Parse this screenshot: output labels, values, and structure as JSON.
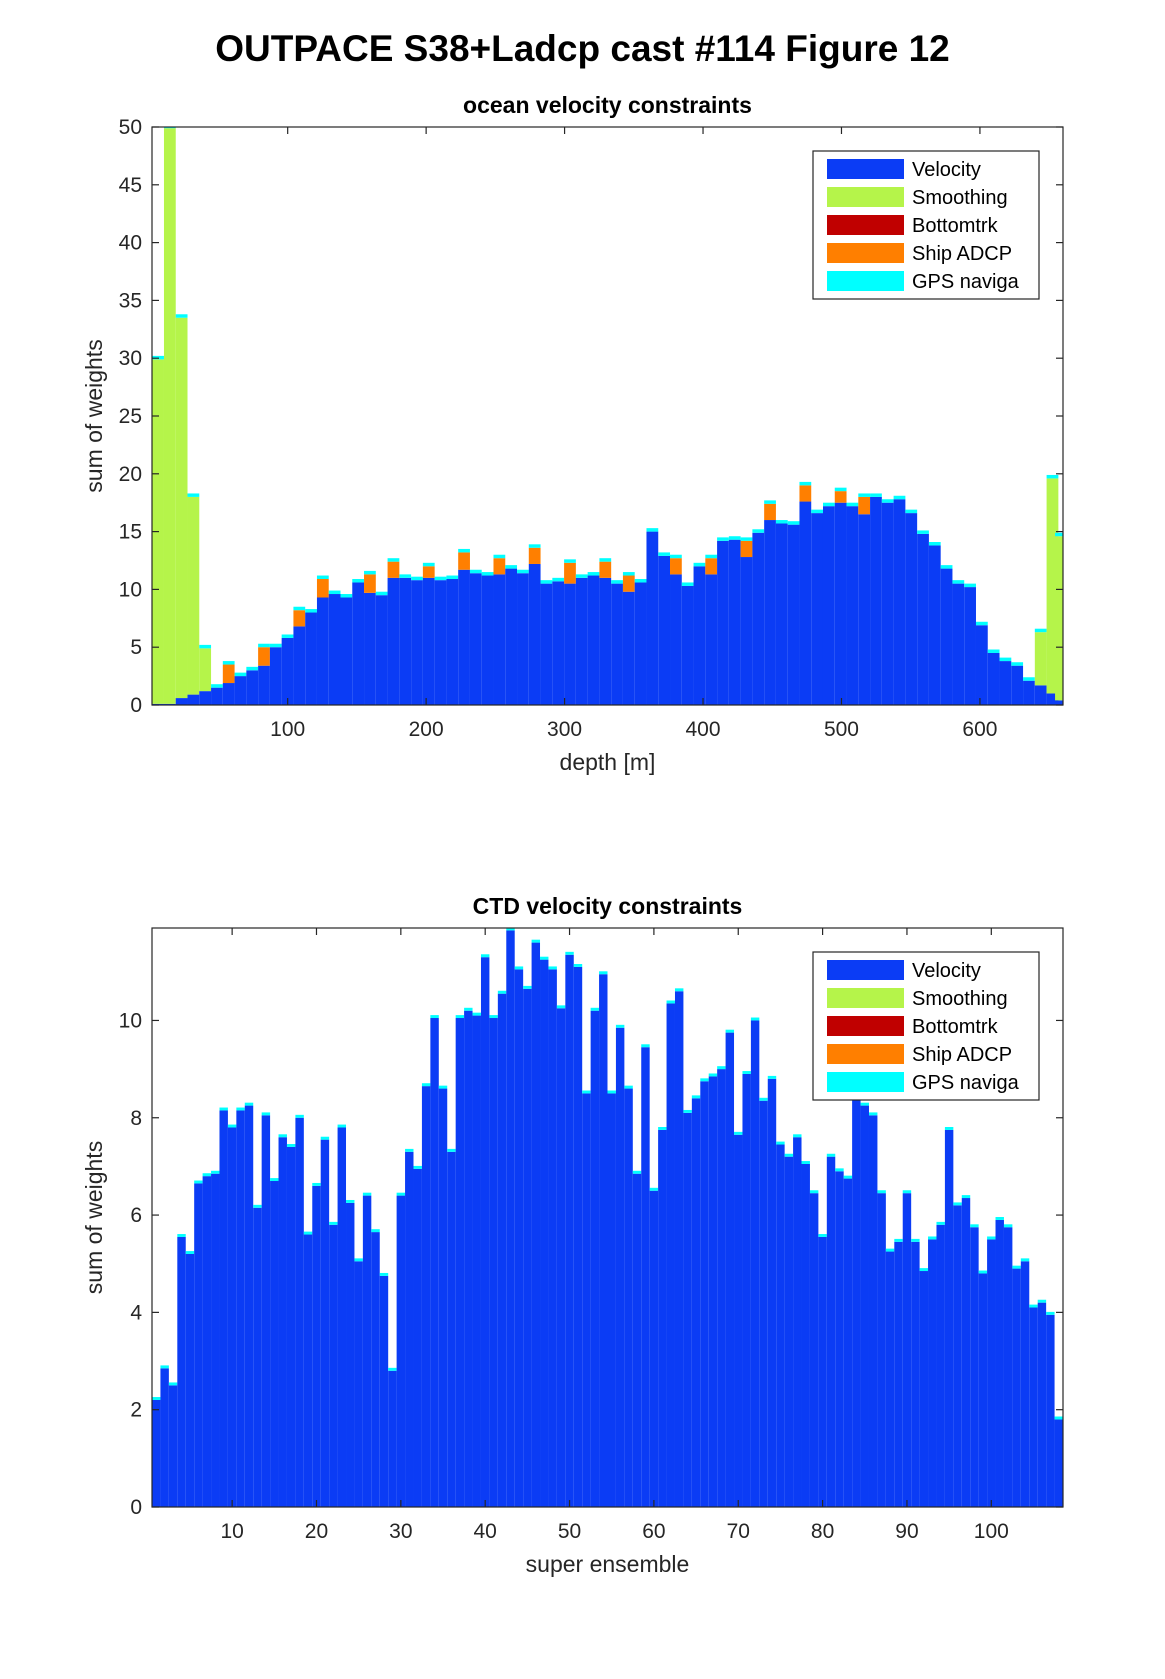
{
  "figure": {
    "title": "OUTPACE S38+Ladcp cast #114  Figure 12"
  },
  "colors": {
    "velocity": "#0b3cf5",
    "smoothing": "#b5f44a",
    "bottomtrk": "#c00000",
    "ship_adcp": "#ff7f00",
    "gps": "#00ffff"
  },
  "legend": {
    "entries": [
      "Velocity",
      "Smoothing",
      "Bottomtrk",
      "Ship ADCP",
      "GPS naviga"
    ],
    "placement": "top-right"
  },
  "chart_data": [
    {
      "type": "bar",
      "stacked": true,
      "title": "ocean velocity constraints",
      "xlabel": "depth [m]",
      "ylabel": "sum of weights",
      "xlim": [
        2,
        660
      ],
      "ylim": [
        0,
        50
      ],
      "xticks": [
        100,
        200,
        300,
        400,
        500,
        600
      ],
      "yticks": [
        0,
        5,
        10,
        15,
        20,
        25,
        30,
        35,
        40,
        45,
        50
      ],
      "bin_width": 8.5,
      "depth": [
        6.4,
        14.9,
        23.4,
        31.9,
        40.4,
        48.9,
        57.4,
        65.9,
        74.4,
        82.9,
        91.4,
        99.9,
        108.4,
        116.9,
        125.4,
        133.9,
        142.4,
        150.9,
        159.4,
        167.9,
        176.4,
        184.9,
        193.4,
        201.9,
        210.4,
        218.9,
        227.4,
        235.9,
        244.4,
        252.9,
        261.4,
        269.9,
        278.4,
        286.9,
        295.4,
        303.9,
        312.4,
        320.9,
        329.4,
        337.9,
        346.4,
        354.9,
        363.4,
        371.9,
        380.4,
        388.9,
        397.4,
        405.9,
        414.4,
        422.9,
        431.4,
        439.9,
        448.4,
        456.9,
        465.4,
        473.9,
        482.4,
        490.9,
        499.4,
        507.9,
        516.4,
        524.9,
        533.4,
        541.9,
        550.4,
        558.9,
        567.4,
        575.9,
        584.4,
        592.9,
        601.4,
        609.9,
        618.4,
        626.9,
        635.4,
        643.9,
        652.4,
        658.5
      ],
      "series": [
        {
          "name": "Velocity",
          "values": [
            0.1,
            0.1,
            0.6,
            0.9,
            1.2,
            1.5,
            1.9,
            2.5,
            3.0,
            3.4,
            5.0,
            5.8,
            6.8,
            8.0,
            9.3,
            9.6,
            9.3,
            10.6,
            9.7,
            9.5,
            11.0,
            11.0,
            10.8,
            11.0,
            10.8,
            10.9,
            11.7,
            11.4,
            11.2,
            11.3,
            11.8,
            11.4,
            12.2,
            10.5,
            10.7,
            10.5,
            11.0,
            11.2,
            11.0,
            10.5,
            9.8,
            10.6,
            15.0,
            12.9,
            11.3,
            10.3,
            12.0,
            11.3,
            14.2,
            14.3,
            12.8,
            14.9,
            16.0,
            15.7,
            15.6,
            17.6,
            16.6,
            17.2,
            17.5,
            17.2,
            16.5,
            18.0,
            17.5,
            17.8,
            16.6,
            14.8,
            13.8,
            11.8,
            10.5,
            10.2,
            6.9,
            4.5,
            3.8,
            3.4,
            2.1,
            1.7,
            1.0,
            0.4
          ]
        },
        {
          "name": "Smoothing",
          "values": [
            29.8,
            49.8,
            32.9,
            17.1,
            3.7,
            0.0,
            0.0,
            0.0,
            0.0,
            0.0,
            0.0,
            0.0,
            0.0,
            0.0,
            0.0,
            0.0,
            0.0,
            0.0,
            0.0,
            0.0,
            0.0,
            0.0,
            0.0,
            0.0,
            0.0,
            0.0,
            0.0,
            0.0,
            0.0,
            0.0,
            0.0,
            0.0,
            0.0,
            0.0,
            0.0,
            0.0,
            0.0,
            0.0,
            0.0,
            0.0,
            0.0,
            0.0,
            0.0,
            0.0,
            0.0,
            0.0,
            0.0,
            0.0,
            0.0,
            0.0,
            0.0,
            0.0,
            0.0,
            0.0,
            0.0,
            0.0,
            0.0,
            0.0,
            0.0,
            0.0,
            0.0,
            0.0,
            0.0,
            0.0,
            0.0,
            0.0,
            0.0,
            0.0,
            0.0,
            0.0,
            0.0,
            0.0,
            0.0,
            0.0,
            0.0,
            4.6,
            18.6,
            14.2
          ]
        },
        {
          "name": "Bottomtrk",
          "values": [
            0,
            0,
            0,
            0,
            0,
            0,
            0,
            0,
            0,
            0,
            0,
            0,
            0,
            0,
            0,
            0,
            0,
            0,
            0,
            0,
            0,
            0,
            0,
            0,
            0,
            0,
            0,
            0,
            0,
            0,
            0,
            0,
            0,
            0,
            0,
            0,
            0,
            0,
            0,
            0,
            0,
            0,
            0,
            0,
            0,
            0,
            0,
            0,
            0,
            0,
            0,
            0,
            0,
            0,
            0,
            0,
            0,
            0,
            0,
            0,
            0,
            0,
            0,
            0,
            0,
            0,
            0,
            0,
            0,
            0,
            0,
            0,
            0,
            0,
            0,
            0,
            0,
            0
          ]
        },
        {
          "name": "Ship ADCP",
          "values": [
            0,
            0,
            0,
            0,
            0,
            0,
            1.6,
            0,
            0,
            1.6,
            0,
            0,
            1.4,
            0,
            1.6,
            0,
            0,
            0,
            1.6,
            0,
            1.4,
            0,
            0,
            1.0,
            0,
            0,
            1.5,
            0,
            0,
            1.4,
            0,
            0,
            1.4,
            0,
            0,
            1.8,
            0,
            0,
            1.4,
            0,
            1.4,
            0,
            0,
            0,
            1.4,
            0,
            0,
            1.4,
            0,
            0,
            1.4,
            0,
            1.4,
            0,
            0,
            1.4,
            0,
            0,
            1.0,
            0,
            1.5,
            0,
            0,
            0,
            0,
            0,
            0,
            0,
            0,
            0,
            0,
            0,
            0,
            0,
            0,
            0,
            0,
            0
          ]
        },
        {
          "name": "GPS naviga",
          "values": [
            0.3,
            0.3,
            0.3,
            0.3,
            0.3,
            0.3,
            0.3,
            0.3,
            0.3,
            0.3,
            0.3,
            0.3,
            0.3,
            0.3,
            0.3,
            0.3,
            0.3,
            0.3,
            0.3,
            0.3,
            0.3,
            0.3,
            0.3,
            0.3,
            0.3,
            0.3,
            0.3,
            0.3,
            0.3,
            0.3,
            0.3,
            0.3,
            0.3,
            0.3,
            0.3,
            0.3,
            0.3,
            0.3,
            0.3,
            0.3,
            0.3,
            0.3,
            0.3,
            0.3,
            0.3,
            0.3,
            0.3,
            0.3,
            0.3,
            0.3,
            0.3,
            0.3,
            0.3,
            0.3,
            0.3,
            0.3,
            0.3,
            0.3,
            0.3,
            0.3,
            0.3,
            0.3,
            0.3,
            0.3,
            0.3,
            0.3,
            0.3,
            0.3,
            0.3,
            0.3,
            0.3,
            0.3,
            0.3,
            0.3,
            0.3,
            0.3,
            0.3,
            0.3
          ]
        }
      ]
    },
    {
      "type": "bar",
      "stacked": true,
      "title": "CTD velocity constraints",
      "xlabel": "super ensemble",
      "ylabel": "sum of weights",
      "xlim": [
        0.5,
        108.5
      ],
      "ylim": [
        0,
        11.9
      ],
      "xticks": [
        10,
        20,
        30,
        40,
        50,
        60,
        70,
        80,
        90,
        100
      ],
      "yticks": [
        0,
        2,
        4,
        6,
        8,
        10
      ],
      "x": [
        1,
        2,
        3,
        4,
        5,
        6,
        7,
        8,
        9,
        10,
        11,
        12,
        13,
        14,
        15,
        16,
        17,
        18,
        19,
        20,
        21,
        22,
        23,
        24,
        25,
        26,
        27,
        28,
        29,
        30,
        31,
        32,
        33,
        34,
        35,
        36,
        37,
        38,
        39,
        40,
        41,
        42,
        43,
        44,
        45,
        46,
        47,
        48,
        49,
        50,
        51,
        52,
        53,
        54,
        55,
        56,
        57,
        58,
        59,
        60,
        61,
        62,
        63,
        64,
        65,
        66,
        67,
        68,
        69,
        70,
        71,
        72,
        73,
        74,
        75,
        76,
        77,
        78,
        79,
        80,
        81,
        82,
        83,
        84,
        85,
        86,
        87,
        88,
        89,
        90,
        91,
        92,
        93,
        94,
        95,
        96,
        97,
        98,
        99,
        100,
        101,
        102,
        103,
        104,
        105,
        106,
        107,
        108
      ],
      "series": [
        {
          "name": "Velocity",
          "values": [
            2.2,
            2.85,
            2.5,
            5.55,
            5.2,
            6.65,
            6.8,
            6.85,
            8.15,
            7.8,
            8.15,
            8.25,
            6.15,
            8.05,
            6.7,
            7.6,
            7.4,
            8.0,
            5.6,
            6.6,
            7.55,
            5.8,
            7.8,
            6.25,
            5.05,
            6.4,
            5.65,
            4.75,
            2.8,
            6.4,
            7.3,
            6.95,
            8.65,
            10.05,
            8.6,
            7.3,
            10.05,
            10.2,
            10.1,
            11.3,
            10.05,
            10.55,
            11.85,
            11.05,
            10.65,
            11.6,
            11.25,
            11.05,
            10.25,
            11.35,
            11.1,
            8.5,
            10.2,
            10.95,
            8.5,
            9.85,
            8.6,
            6.85,
            9.45,
            6.5,
            7.75,
            10.35,
            10.6,
            8.1,
            8.4,
            8.75,
            8.85,
            9.0,
            9.75,
            7.65,
            8.9,
            10.0,
            8.35,
            8.8,
            7.45,
            7.2,
            7.6,
            7.05,
            6.45,
            5.55,
            7.2,
            6.9,
            6.75,
            8.45,
            8.25,
            8.05,
            6.45,
            5.25,
            5.45,
            6.45,
            5.45,
            4.85,
            5.5,
            5.8,
            7.75,
            6.2,
            6.35,
            5.75,
            4.8,
            5.5,
            5.9,
            5.75,
            4.9,
            5.05,
            4.1,
            4.2,
            3.95,
            1.8
          ]
        },
        {
          "name": "Smoothing",
          "values": [
            0,
            0,
            0,
            0,
            0,
            0,
            0,
            0,
            0,
            0,
            0,
            0,
            0,
            0,
            0,
            0,
            0,
            0,
            0,
            0,
            0,
            0,
            0,
            0,
            0,
            0,
            0,
            0,
            0,
            0,
            0,
            0,
            0,
            0,
            0,
            0,
            0,
            0,
            0,
            0,
            0,
            0,
            0,
            0,
            0,
            0,
            0,
            0,
            0,
            0,
            0,
            0,
            0,
            0,
            0,
            0,
            0,
            0,
            0,
            0,
            0,
            0,
            0,
            0,
            0,
            0,
            0,
            0,
            0,
            0,
            0,
            0,
            0,
            0,
            0,
            0,
            0,
            0,
            0,
            0,
            0,
            0,
            0,
            0,
            0,
            0,
            0,
            0,
            0,
            0,
            0,
            0,
            0,
            0,
            0,
            0,
            0,
            0,
            0,
            0,
            0,
            0,
            0,
            0,
            0,
            0,
            0,
            0
          ]
        },
        {
          "name": "Bottomtrk",
          "values": [
            0,
            0,
            0,
            0,
            0,
            0,
            0,
            0,
            0,
            0,
            0,
            0,
            0,
            0,
            0,
            0,
            0,
            0,
            0,
            0,
            0,
            0,
            0,
            0,
            0,
            0,
            0,
            0,
            0,
            0,
            0,
            0,
            0,
            0,
            0,
            0,
            0,
            0,
            0,
            0,
            0,
            0,
            0,
            0,
            0,
            0,
            0,
            0,
            0,
            0,
            0,
            0,
            0,
            0,
            0,
            0,
            0,
            0,
            0,
            0,
            0,
            0,
            0,
            0,
            0,
            0,
            0,
            0,
            0,
            0,
            0,
            0,
            0,
            0,
            0,
            0,
            0,
            0,
            0,
            0,
            0,
            0,
            0,
            0,
            0,
            0,
            0,
            0,
            0,
            0,
            0,
            0,
            0,
            0,
            0,
            0,
            0,
            0,
            0,
            0,
            0,
            0,
            0,
            0,
            0,
            0,
            0,
            0
          ]
        },
        {
          "name": "Ship ADCP",
          "values": [
            0,
            0,
            0,
            0,
            0,
            0,
            0,
            0,
            0,
            0,
            0,
            0,
            0,
            0,
            0,
            0,
            0,
            0,
            0,
            0,
            0,
            0,
            0,
            0,
            0,
            0,
            0,
            0,
            0,
            0,
            0,
            0,
            0,
            0,
            0,
            0,
            0,
            0,
            0,
            0,
            0,
            0,
            0,
            0,
            0,
            0,
            0,
            0,
            0,
            0,
            0,
            0,
            0,
            0,
            0,
            0,
            0,
            0,
            0,
            0,
            0,
            0,
            0,
            0,
            0,
            0,
            0,
            0,
            0,
            0,
            0,
            0,
            0,
            0,
            0,
            0,
            0,
            0,
            0,
            0,
            0,
            0,
            0,
            0,
            0,
            0,
            0,
            0,
            0,
            0,
            0,
            0,
            0,
            0,
            0,
            0,
            0,
            0,
            0,
            0,
            0,
            0,
            0,
            0,
            0,
            0,
            0,
            0
          ]
        },
        {
          "name": "GPS naviga",
          "values": [
            0.06,
            0.06,
            0.06,
            0.06,
            0.06,
            0.06,
            0.06,
            0.06,
            0.06,
            0.06,
            0.06,
            0.06,
            0.06,
            0.06,
            0.06,
            0.06,
            0.06,
            0.06,
            0.06,
            0.06,
            0.06,
            0.06,
            0.06,
            0.06,
            0.06,
            0.06,
            0.06,
            0.06,
            0.06,
            0.06,
            0.06,
            0.06,
            0.06,
            0.06,
            0.06,
            0.06,
            0.06,
            0.06,
            0.06,
            0.06,
            0.06,
            0.06,
            0.06,
            0.06,
            0.06,
            0.06,
            0.06,
            0.06,
            0.06,
            0.06,
            0.06,
            0.06,
            0.06,
            0.06,
            0.06,
            0.06,
            0.06,
            0.06,
            0.06,
            0.06,
            0.06,
            0.06,
            0.06,
            0.06,
            0.06,
            0.06,
            0.06,
            0.06,
            0.06,
            0.06,
            0.06,
            0.06,
            0.06,
            0.06,
            0.06,
            0.06,
            0.06,
            0.06,
            0.06,
            0.06,
            0.06,
            0.06,
            0.06,
            0.06,
            0.06,
            0.06,
            0.06,
            0.06,
            0.06,
            0.06,
            0.06,
            0.06,
            0.06,
            0.06,
            0.06,
            0.06,
            0.06,
            0.06,
            0.06,
            0.06,
            0.06,
            0.06,
            0.06,
            0.06,
            0.06,
            0.06,
            0.06,
            0.06
          ]
        }
      ]
    }
  ]
}
